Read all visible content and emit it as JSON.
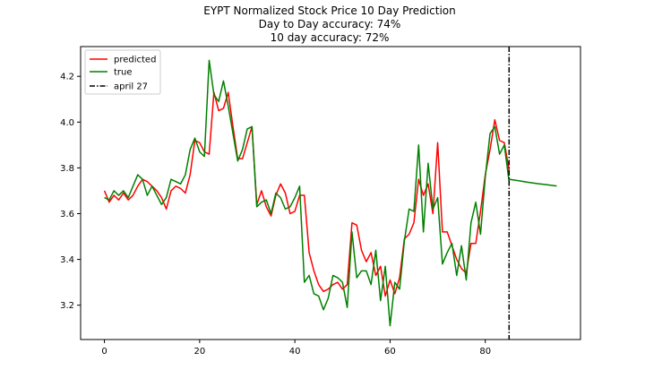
{
  "chart_data": {
    "type": "line",
    "title_lines": [
      "EYPT Normalized Stock Price 10 Day Prediction",
      "Day to Day accuracy: 74%",
      "10 day accuracy: 72%"
    ],
    "xlabel": "",
    "ylabel": "",
    "xlim": [
      -5,
      100
    ],
    "ylim": [
      3.05,
      4.33
    ],
    "x_ticks": [
      0,
      20,
      40,
      60,
      80
    ],
    "y_ticks": [
      3.2,
      3.4,
      3.6,
      3.8,
      4.0,
      4.2
    ],
    "grid": false,
    "legend_position": "upper-left",
    "series": [
      {
        "name": "predicted",
        "color": "#ff0000",
        "x": [
          0,
          1,
          2,
          3,
          4,
          5,
          6,
          7,
          8,
          9,
          10,
          11,
          12,
          13,
          14,
          15,
          16,
          17,
          18,
          19,
          20,
          21,
          22,
          23,
          24,
          25,
          26,
          27,
          28,
          29,
          30,
          31,
          32,
          33,
          34,
          35,
          36,
          37,
          38,
          39,
          40,
          41,
          42,
          43,
          44,
          45,
          46,
          47,
          48,
          49,
          50,
          51,
          52,
          53,
          54,
          55,
          56,
          57,
          58,
          59,
          60,
          61,
          62,
          63,
          64,
          65,
          66,
          67,
          68,
          69,
          70,
          71,
          72,
          73,
          74,
          75,
          76,
          77,
          78,
          79,
          80,
          81,
          82,
          83,
          84,
          85
        ],
        "values": [
          3.7,
          3.65,
          3.68,
          3.66,
          3.69,
          3.66,
          3.68,
          3.72,
          3.75,
          3.74,
          3.72,
          3.7,
          3.67,
          3.62,
          3.7,
          3.72,
          3.71,
          3.69,
          3.77,
          3.92,
          3.91,
          3.87,
          3.86,
          4.13,
          4.05,
          4.06,
          4.13,
          3.98,
          3.84,
          3.84,
          3.91,
          3.98,
          3.64,
          3.7,
          3.63,
          3.59,
          3.68,
          3.73,
          3.69,
          3.6,
          3.61,
          3.68,
          3.68,
          3.43,
          3.35,
          3.29,
          3.26,
          3.27,
          3.29,
          3.3,
          3.27,
          3.29,
          3.56,
          3.55,
          3.44,
          3.39,
          3.43,
          3.33,
          3.37,
          3.24,
          3.31,
          3.25,
          3.32,
          3.49,
          3.51,
          3.56,
          3.75,
          3.68,
          3.73,
          3.6,
          3.91,
          3.52,
          3.52,
          3.46,
          3.4,
          3.36,
          3.34,
          3.47,
          3.47,
          3.61,
          3.77,
          3.88,
          4.01,
          3.92,
          3.91,
          3.79
        ]
      },
      {
        "name": "true",
        "color": "#008000",
        "x": [
          0,
          1,
          2,
          3,
          4,
          5,
          6,
          7,
          8,
          9,
          10,
          11,
          12,
          13,
          14,
          15,
          16,
          17,
          18,
          19,
          20,
          21,
          22,
          23,
          24,
          25,
          26,
          27,
          28,
          29,
          30,
          31,
          32,
          33,
          34,
          35,
          36,
          37,
          38,
          39,
          40,
          41,
          42,
          43,
          44,
          45,
          46,
          47,
          48,
          49,
          50,
          51,
          52,
          53,
          54,
          55,
          56,
          57,
          58,
          59,
          60,
          61,
          62,
          63,
          64,
          65,
          66,
          67,
          68,
          69,
          70,
          71,
          72,
          73,
          74,
          75,
          76,
          77,
          78,
          79,
          80,
          81,
          82,
          83,
          84,
          85
        ],
        "values": [
          3.67,
          3.66,
          3.7,
          3.68,
          3.7,
          3.67,
          3.72,
          3.77,
          3.75,
          3.68,
          3.72,
          3.68,
          3.64,
          3.67,
          3.75,
          3.74,
          3.73,
          3.77,
          3.88,
          3.93,
          3.87,
          3.85,
          4.27,
          4.12,
          4.09,
          4.18,
          4.07,
          3.95,
          3.83,
          3.88,
          3.97,
          3.98,
          3.63,
          3.65,
          3.66,
          3.6,
          3.69,
          3.67,
          3.62,
          3.63,
          3.67,
          3.72,
          3.3,
          3.33,
          3.25,
          3.24,
          3.18,
          3.23,
          3.33,
          3.32,
          3.3,
          3.19,
          3.52,
          3.32,
          3.35,
          3.35,
          3.29,
          3.44,
          3.22,
          3.37,
          3.11,
          3.3,
          3.27,
          3.48,
          3.62,
          3.61,
          3.9,
          3.52,
          3.82,
          3.62,
          3.67,
          3.38,
          3.43,
          3.47,
          3.33,
          3.46,
          3.31,
          3.56,
          3.65,
          3.51,
          3.76,
          3.95,
          3.98,
          3.86,
          3.9,
          3.74
        ]
      },
      {
        "name": "",
        "color": "#008000",
        "x": [
          85,
          87,
          89,
          91,
          93,
          95
        ],
        "values": [
          3.75,
          3.744,
          3.737,
          3.731,
          3.726,
          3.721
        ]
      }
    ],
    "vertical_lines": [
      {
        "name": "april 27",
        "x": 85,
        "color": "#000000",
        "style": "dash-dot"
      }
    ]
  }
}
